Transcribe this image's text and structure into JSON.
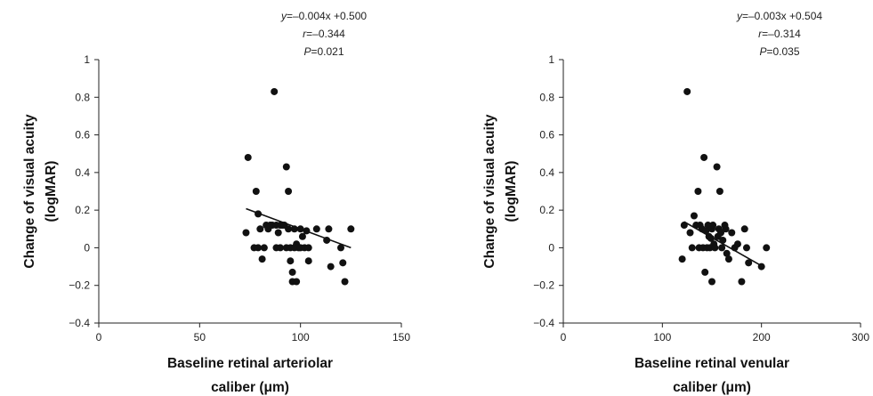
{
  "chart_data": [
    {
      "type": "scatter",
      "title": "",
      "xlabel_lines": [
        "Baseline retinal arteriolar",
        "caliber (μm)"
      ],
      "ylabel_lines": [
        "Change of visual acuity",
        "(logMAR)"
      ],
      "xlim": [
        0,
        150
      ],
      "ylim": [
        -0.4,
        1
      ],
      "x_ticks": [
        0,
        50,
        100,
        150
      ],
      "y_ticks": [
        -0.4,
        -0.2,
        0,
        0.2,
        0.4,
        0.6,
        0.8,
        1
      ],
      "x_tick_labels": [
        "0",
        "50",
        "100",
        "150"
      ],
      "y_tick_labels": [
        "−0.4",
        "−0.2",
        "0",
        "0.2",
        "0.4",
        "0.6",
        "0.8",
        "1"
      ],
      "grid": false,
      "annotation": {
        "equation_var": "y",
        "equation_rest": "=–0.004x +0.500",
        "r_var": "r",
        "r_rest": "=–0.344",
        "p_var": "P",
        "p_rest": "=0.021"
      },
      "regression": {
        "slope": -0.004,
        "intercept": 0.5,
        "x_range": [
          73,
          125
        ]
      },
      "points": [
        [
          73,
          0.08
        ],
        [
          74,
          0.48
        ],
        [
          77,
          0.0
        ],
        [
          78,
          0.3
        ],
        [
          79,
          0.18
        ],
        [
          79,
          0.0
        ],
        [
          80,
          0.1
        ],
        [
          81,
          -0.06
        ],
        [
          82,
          0.0
        ],
        [
          83,
          0.12
        ],
        [
          84,
          0.1
        ],
        [
          85,
          0.12
        ],
        [
          86,
          0.12
        ],
        [
          87,
          0.83
        ],
        [
          88,
          0.12
        ],
        [
          88,
          0.0
        ],
        [
          89,
          0.08
        ],
        [
          90,
          0.0
        ],
        [
          90,
          0.12
        ],
        [
          91,
          0.12
        ],
        [
          92,
          0.12
        ],
        [
          93,
          0.0
        ],
        [
          93,
          0.43
        ],
        [
          94,
          0.3
        ],
        [
          94,
          0.1
        ],
        [
          95,
          0.0
        ],
        [
          95,
          -0.07
        ],
        [
          96,
          -0.13
        ],
        [
          96,
          -0.18
        ],
        [
          97,
          0.0
        ],
        [
          97,
          0.1
        ],
        [
          98,
          0.02
        ],
        [
          98,
          -0.18
        ],
        [
          99,
          0.0
        ],
        [
          100,
          0.1
        ],
        [
          100,
          0.0
        ],
        [
          101,
          0.06
        ],
        [
          102,
          0.0
        ],
        [
          103,
          0.09
        ],
        [
          104,
          0.0
        ],
        [
          104,
          -0.07
        ],
        [
          108,
          0.1
        ],
        [
          113,
          0.04
        ],
        [
          114,
          0.1
        ],
        [
          115,
          -0.1
        ],
        [
          120,
          0.0
        ],
        [
          121,
          -0.08
        ],
        [
          122,
          -0.18
        ],
        [
          125,
          0.1
        ]
      ]
    },
    {
      "type": "scatter",
      "title": "",
      "xlabel_lines": [
        "Baseline retinal venular",
        "caliber (μm)"
      ],
      "ylabel_lines": [
        "Change of visual acuity",
        "(logMAR)"
      ],
      "xlim": [
        0,
        300
      ],
      "ylim": [
        -0.4,
        1
      ],
      "x_ticks": [
        0,
        100,
        200,
        300
      ],
      "y_ticks": [
        -0.4,
        -0.2,
        0,
        0.2,
        0.4,
        0.6,
        0.8,
        1
      ],
      "x_tick_labels": [
        "0",
        "100",
        "200",
        "300"
      ],
      "y_tick_labels": [
        "−0.4",
        "−0.2",
        "0",
        "0.2",
        "0.4",
        "0.6",
        "0.8",
        "1"
      ],
      "grid": false,
      "annotation": {
        "equation_var": "y",
        "equation_rest": "=–0.003x +0.504",
        "r_var": "r",
        "r_rest": "=–0.314",
        "p_var": "P",
        "p_rest": "=0.035"
      },
      "regression": {
        "slope": -0.003,
        "intercept": 0.504,
        "x_range": [
          122,
          200
        ]
      },
      "points": [
        [
          120,
          -0.06
        ],
        [
          122,
          0.12
        ],
        [
          125,
          0.83
        ],
        [
          128,
          0.08
        ],
        [
          130,
          0.0
        ],
        [
          132,
          0.17
        ],
        [
          134,
          0.12
        ],
        [
          136,
          0.3
        ],
        [
          137,
          0.0
        ],
        [
          138,
          0.12
        ],
        [
          140,
          0.1
        ],
        [
          141,
          0.0
        ],
        [
          142,
          0.48
        ],
        [
          143,
          -0.13
        ],
        [
          144,
          0.09
        ],
        [
          145,
          0.0
        ],
        [
          146,
          0.12
        ],
        [
          147,
          0.06
        ],
        [
          148,
          0.0
        ],
        [
          149,
          0.05
        ],
        [
          150,
          0.1
        ],
        [
          150,
          -0.18
        ],
        [
          151,
          0.12
        ],
        [
          152,
          0.02
        ],
        [
          153,
          0.0
        ],
        [
          155,
          0.43
        ],
        [
          156,
          0.06
        ],
        [
          157,
          0.1
        ],
        [
          158,
          0.3
        ],
        [
          159,
          0.08
        ],
        [
          160,
          0.0
        ],
        [
          161,
          0.04
        ],
        [
          163,
          0.12
        ],
        [
          164,
          0.1
        ],
        [
          165,
          -0.03
        ],
        [
          167,
          -0.06
        ],
        [
          170,
          0.08
        ],
        [
          173,
          0.0
        ],
        [
          176,
          0.02
        ],
        [
          180,
          -0.18
        ],
        [
          183,
          0.1
        ],
        [
          185,
          0.0
        ],
        [
          187,
          -0.08
        ],
        [
          200,
          -0.1
        ],
        [
          205,
          0.0
        ]
      ]
    }
  ]
}
